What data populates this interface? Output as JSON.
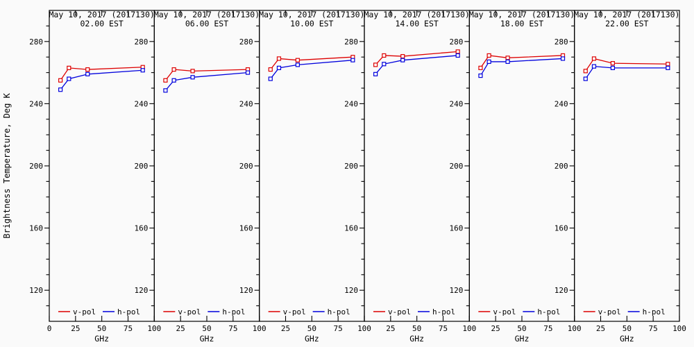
{
  "figure": {
    "ylabel": "Brightness Temperature, Deg K",
    "xlabel": "GHz",
    "legend": {
      "v_label": "v-pol",
      "h_label": "h-pol",
      "position": "bottom-inside-each-panel"
    },
    "colors": {
      "v_pol": "#dd0000",
      "h_pol": "#0000dd",
      "axis": "#000000",
      "background": "#fafafa"
    }
  },
  "chart_data": [
    {
      "type": "line",
      "title": "May 10, 2017 (2017130)",
      "subtitle": "02.00 EST",
      "xlabel": "GHz",
      "ylabel": "Brightness Temperature, Deg K",
      "x": [
        10.65,
        18.7,
        36.5,
        89
      ],
      "series": [
        {
          "name": "v-pol",
          "color": "#dd0000",
          "values": [
            255,
            263,
            262,
            263.5
          ]
        },
        {
          "name": "h-pol",
          "color": "#0000dd",
          "values": [
            249,
            256,
            259,
            261.5
          ]
        }
      ],
      "xlim": [
        0,
        100
      ],
      "ylim": [
        100,
        300
      ],
      "xticks": [
        0,
        25,
        50,
        75,
        100
      ],
      "yticks": [
        120,
        160,
        200,
        240,
        280
      ],
      "ytick_minor_step": 10,
      "grid": false,
      "marker": "open-square"
    },
    {
      "type": "line",
      "title": "May 10, 2017 (2017130)",
      "subtitle": "06.00 EST",
      "xlabel": "GHz",
      "x": [
        10.65,
        18.7,
        36.5,
        89
      ],
      "series": [
        {
          "name": "v-pol",
          "color": "#dd0000",
          "values": [
            255,
            262,
            261,
            262
          ]
        },
        {
          "name": "h-pol",
          "color": "#0000dd",
          "values": [
            248.5,
            255,
            257,
            260
          ]
        }
      ],
      "xlim": [
        0,
        100
      ],
      "ylim": [
        100,
        300
      ],
      "xticks": [
        0,
        25,
        50,
        75,
        100
      ],
      "yticks": [
        120,
        160,
        200,
        240,
        280
      ],
      "ytick_minor_step": 10,
      "grid": false,
      "marker": "open-square"
    },
    {
      "type": "line",
      "title": "May 10, 2017 (2017130)",
      "subtitle": "10.00 EST",
      "xlabel": "GHz",
      "x": [
        10.65,
        18.7,
        36.5,
        89
      ],
      "series": [
        {
          "name": "v-pol",
          "color": "#dd0000",
          "values": [
            262,
            269,
            268,
            270
          ]
        },
        {
          "name": "h-pol",
          "color": "#0000dd",
          "values": [
            256,
            263,
            265,
            268
          ]
        }
      ],
      "xlim": [
        0,
        100
      ],
      "ylim": [
        100,
        300
      ],
      "xticks": [
        0,
        25,
        50,
        75,
        100
      ],
      "yticks": [
        120,
        160,
        200,
        240,
        280
      ],
      "ytick_minor_step": 10,
      "grid": false,
      "marker": "open-square"
    },
    {
      "type": "line",
      "title": "May 10, 2017 (2017130)",
      "subtitle": "14.00 EST",
      "xlabel": "GHz",
      "x": [
        10.65,
        18.7,
        36.5,
        89
      ],
      "series": [
        {
          "name": "v-pol",
          "color": "#dd0000",
          "values": [
            265,
            271,
            270.5,
            273.5
          ]
        },
        {
          "name": "h-pol",
          "color": "#0000dd",
          "values": [
            259,
            265.5,
            268,
            271
          ]
        }
      ],
      "xlim": [
        0,
        100
      ],
      "ylim": [
        100,
        300
      ],
      "xticks": [
        0,
        25,
        50,
        75,
        100
      ],
      "yticks": [
        120,
        160,
        200,
        240,
        280
      ],
      "ytick_minor_step": 10,
      "grid": false,
      "marker": "open-square"
    },
    {
      "type": "line",
      "title": "May 10, 2017 (2017130)",
      "subtitle": "18.00 EST",
      "xlabel": "GHz",
      "x": [
        10.65,
        18.7,
        36.5,
        89
      ],
      "series": [
        {
          "name": "v-pol",
          "color": "#dd0000",
          "values": [
            263,
            271,
            269.5,
            271
          ]
        },
        {
          "name": "h-pol",
          "color": "#0000dd",
          "values": [
            258,
            267,
            267,
            269
          ]
        }
      ],
      "xlim": [
        0,
        100
      ],
      "ylim": [
        100,
        300
      ],
      "xticks": [
        0,
        25,
        50,
        75,
        100
      ],
      "yticks": [
        120,
        160,
        200,
        240,
        280
      ],
      "ytick_minor_step": 10,
      "grid": false,
      "marker": "open-square"
    },
    {
      "type": "line",
      "title": "May 10, 2017 (2017130)",
      "subtitle": "22.00 EST",
      "xlabel": "GHz",
      "x": [
        10.65,
        18.7,
        36.5,
        89
      ],
      "series": [
        {
          "name": "v-pol",
          "color": "#dd0000",
          "values": [
            261,
            269,
            266,
            265.5
          ]
        },
        {
          "name": "h-pol",
          "color": "#0000dd",
          "values": [
            256,
            264,
            263,
            263
          ]
        }
      ],
      "xlim": [
        0,
        100
      ],
      "ylim": [
        100,
        300
      ],
      "xticks": [
        0,
        25,
        50,
        75,
        100
      ],
      "yticks": [
        120,
        160,
        200,
        240,
        280
      ],
      "ytick_minor_step": 10,
      "grid": false,
      "marker": "open-square"
    }
  ]
}
